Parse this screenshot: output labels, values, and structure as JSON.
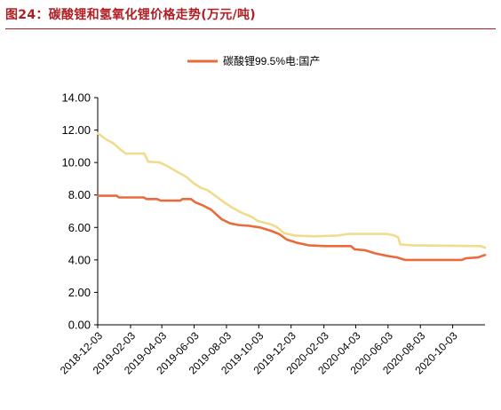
{
  "figure": {
    "title": "图24：碳酸锂和氢氧化锂价格走势(万元/吨)"
  },
  "chart_data": {
    "type": "line",
    "title": "图24：碳酸锂和氢氧化锂价格走势(万元/吨)",
    "xlabel": "",
    "ylabel": "",
    "ylim": [
      0,
      14
    ],
    "y_ticks": [
      "0.00",
      "2.00",
      "4.00",
      "6.00",
      "8.00",
      "10.00",
      "12.00",
      "14.00"
    ],
    "x_ticks": [
      "2018-12-03",
      "2019-02-03",
      "2019-04-03",
      "2019-06-03",
      "2019-08-03",
      "2019-10-03",
      "2019-12-03",
      "2020-02-03",
      "2020-04-03",
      "2020-06-03",
      "2020-08-03",
      "2020-10-03"
    ],
    "x_range": [
      "2018-12-03",
      "2020-12-03"
    ],
    "grid": false,
    "legend": {
      "position": "top-center"
    },
    "series": [
      {
        "name": "碳酸锂99.5%电:国产",
        "color": "#ea6a3c",
        "points": [
          [
            "2018-12-03",
            7.95
          ],
          [
            "2019-01-08",
            7.95
          ],
          [
            "2019-01-12",
            7.85
          ],
          [
            "2019-02-28",
            7.85
          ],
          [
            "2019-03-05",
            7.75
          ],
          [
            "2019-03-25",
            7.75
          ],
          [
            "2019-04-01",
            7.65
          ],
          [
            "2019-05-08",
            7.65
          ],
          [
            "2019-05-12",
            7.75
          ],
          [
            "2019-05-28",
            7.75
          ],
          [
            "2019-06-05",
            7.55
          ],
          [
            "2019-06-20",
            7.35
          ],
          [
            "2019-07-05",
            7.1
          ],
          [
            "2019-07-15",
            6.8
          ],
          [
            "2019-07-25",
            6.5
          ],
          [
            "2019-08-10",
            6.25
          ],
          [
            "2019-08-25",
            6.15
          ],
          [
            "2019-09-15",
            6.1
          ],
          [
            "2019-10-05",
            6.0
          ],
          [
            "2019-10-25",
            5.8
          ],
          [
            "2019-11-10",
            5.6
          ],
          [
            "2019-11-25",
            5.25
          ],
          [
            "2019-12-15",
            5.05
          ],
          [
            "2020-01-05",
            4.9
          ],
          [
            "2020-02-05",
            4.85
          ],
          [
            "2020-03-25",
            4.85
          ],
          [
            "2020-04-01",
            4.65
          ],
          [
            "2020-04-20",
            4.6
          ],
          [
            "2020-05-10",
            4.4
          ],
          [
            "2020-06-01",
            4.25
          ],
          [
            "2020-06-20",
            4.15
          ],
          [
            "2020-07-05",
            4.0
          ],
          [
            "2020-10-20",
            4.0
          ],
          [
            "2020-10-28",
            4.1
          ],
          [
            "2020-11-20",
            4.15
          ],
          [
            "2020-11-28",
            4.25
          ],
          [
            "2020-12-03",
            4.3
          ]
        ]
      },
      {
        "name": "",
        "color": "#f0dc8c",
        "points": [
          [
            "2018-12-03",
            11.8
          ],
          [
            "2018-12-20",
            11.4
          ],
          [
            "2019-01-01",
            11.2
          ],
          [
            "2019-01-15",
            10.8
          ],
          [
            "2019-01-25",
            10.55
          ],
          [
            "2019-03-01",
            10.55
          ],
          [
            "2019-03-08",
            10.05
          ],
          [
            "2019-03-30",
            10.0
          ],
          [
            "2019-04-15",
            9.75
          ],
          [
            "2019-05-01",
            9.45
          ],
          [
            "2019-05-20",
            9.1
          ],
          [
            "2019-06-01",
            8.75
          ],
          [
            "2019-06-15",
            8.45
          ],
          [
            "2019-06-28",
            8.3
          ],
          [
            "2019-07-15",
            7.9
          ],
          [
            "2019-08-01",
            7.5
          ],
          [
            "2019-08-15",
            7.2
          ],
          [
            "2019-09-01",
            6.9
          ],
          [
            "2019-09-20",
            6.65
          ],
          [
            "2019-10-01",
            6.4
          ],
          [
            "2019-10-25",
            6.2
          ],
          [
            "2019-11-05",
            6.05
          ],
          [
            "2019-11-20",
            5.65
          ],
          [
            "2019-12-10",
            5.5
          ],
          [
            "2020-01-15",
            5.45
          ],
          [
            "2020-03-01",
            5.5
          ],
          [
            "2020-03-20",
            5.6
          ],
          [
            "2020-06-01",
            5.6
          ],
          [
            "2020-06-15",
            5.5
          ],
          [
            "2020-06-22",
            5.4
          ],
          [
            "2020-06-26",
            4.95
          ],
          [
            "2020-07-20",
            4.9
          ],
          [
            "2020-11-25",
            4.85
          ],
          [
            "2020-12-03",
            4.75
          ]
        ]
      }
    ]
  }
}
